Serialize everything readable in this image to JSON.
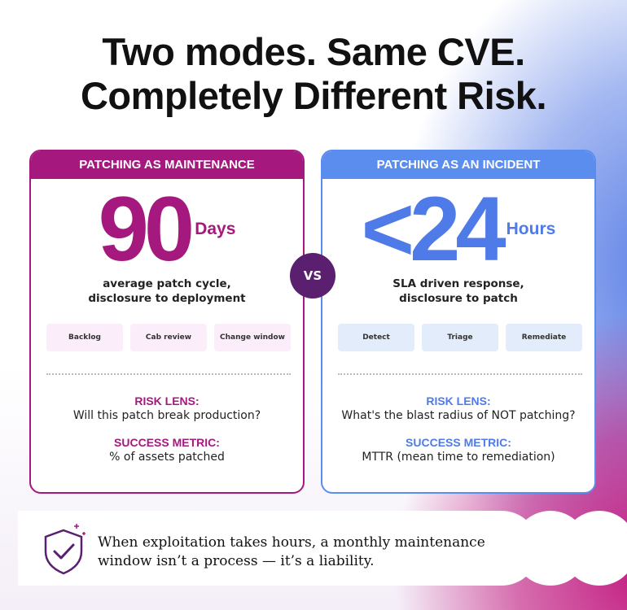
{
  "title": [
    "Two modes. Same CVE.",
    "Completely Different Risk."
  ],
  "cards": [
    {
      "header": "PATCHING AS MAINTENANCE",
      "figure": "90",
      "unit": "Days",
      "caption": [
        "average patch cycle,",
        "disclosure to deployment"
      ],
      "steps": [
        "Backlog",
        "Cab review",
        "Change window"
      ],
      "risk_label": "RISK LENS:",
      "risk": "Will this patch break production?",
      "metric_label": "SUCCESS METRIC:",
      "metric": "% of assets patched"
    },
    {
      "header": "PATCHING AS AN INCIDENT",
      "figure": "<24",
      "unit": "Hours",
      "caption": [
        "SLA driven response,",
        "disclosure to patch"
      ],
      "steps": [
        "Detect",
        "Triage",
        "Remediate"
      ],
      "risk_label": "RISK LENS:",
      "risk": "What's the blast radius of NOT patching?",
      "metric_label": "SUCCESS METRIC:",
      "metric": "MTTR (mean time to remediation)"
    }
  ],
  "vs": "VS",
  "footer": [
    "When exploitation takes hours, a monthly maintenance",
    "window isn’t a process — it’s a liability."
  ]
}
